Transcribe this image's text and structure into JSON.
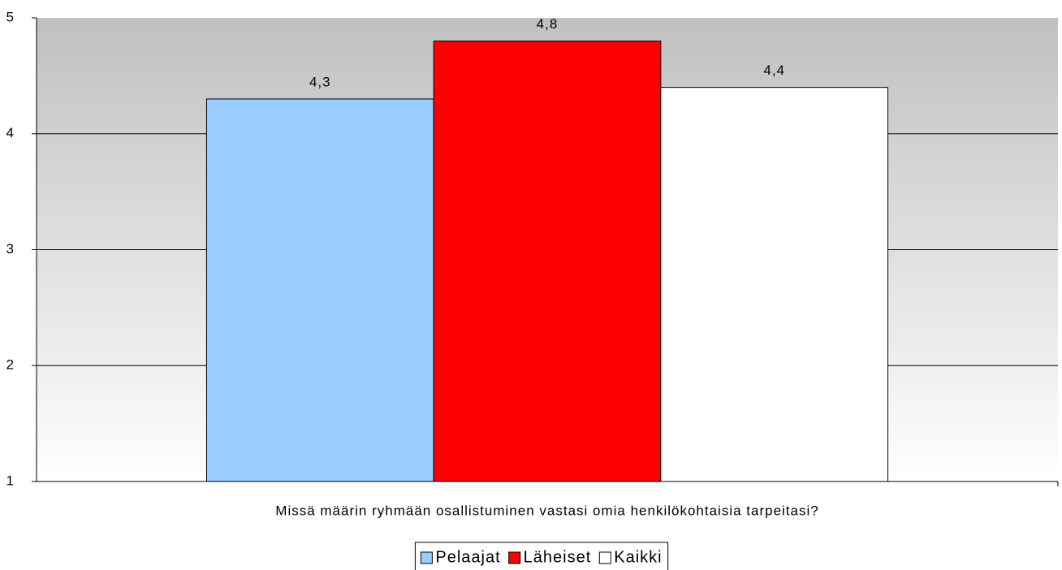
{
  "chart_data": {
    "type": "bar",
    "categories": [
      "Missä määrin ryhmään osallistuminen vastasi omia henkilökohtaisia tarpeitasi?"
    ],
    "series": [
      {
        "name": "Pelaajat",
        "color": "#99ccff",
        "values": [
          4.3
        ],
        "value_labels": [
          "4,3"
        ]
      },
      {
        "name": "Läheiset",
        "color": "#ff0000",
        "values": [
          4.8
        ],
        "value_labels": [
          "4,8"
        ]
      },
      {
        "name": "Kaikki",
        "color": "#ffffff",
        "values": [
          4.4
        ],
        "value_labels": [
          "4,4"
        ]
      }
    ],
    "ylim": [
      1,
      5
    ],
    "yticks": [
      1,
      2,
      3,
      4,
      5
    ],
    "grid": true,
    "legend": "bottom"
  }
}
